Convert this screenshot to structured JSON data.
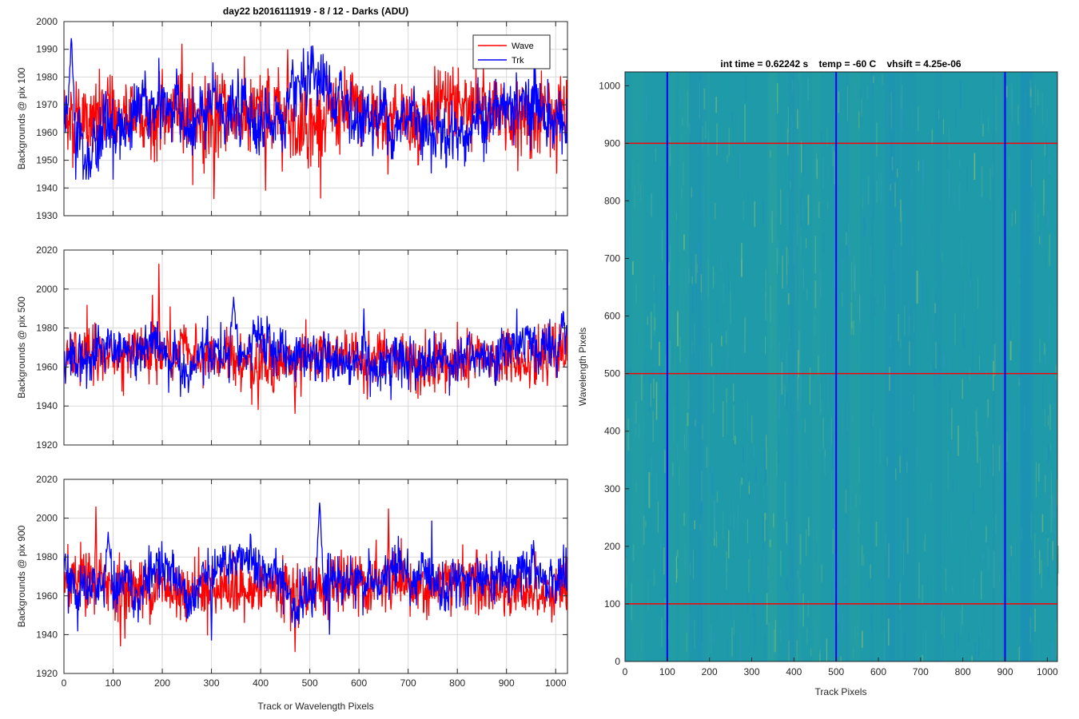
{
  "figure_title": "day22 b2016111919 - 8 / 12 - Darks (ADU)",
  "colors": {
    "wave": "#ff0000",
    "trk": "#0000ff",
    "grid": "#d9d9d9",
    "axis": "#262626",
    "image_base": "#1f9aa8"
  },
  "legend": {
    "entries": [
      "Wave",
      "Trk"
    ],
    "placement": "top-right"
  },
  "chart_data": [
    {
      "type": "line",
      "title": "day22 b2016111919 - 8 / 12 - Darks (ADU)",
      "xlabel": "",
      "ylabel": "Backgrounds @ pix 100",
      "xlim": [
        0,
        1024
      ],
      "ylim": [
        1930,
        2000
      ],
      "xticks": [
        0,
        100,
        200,
        300,
        400,
        500,
        600,
        700,
        800,
        900,
        1000
      ],
      "yticks": [
        1930,
        1940,
        1950,
        1960,
        1970,
        1980,
        1990,
        2000
      ],
      "xtick_labels_visible": false,
      "grid": true,
      "legend": "top-right",
      "series": [
        {
          "name": "Wave",
          "color": "#ff0000",
          "mean": 1966,
          "noise_sd": 7,
          "min_shown": 1936,
          "max_shown": 1992,
          "peaks": [
            [
              240,
              1992
            ],
            [
              305,
              1936
            ],
            [
              410,
              1939
            ],
            [
              455,
              1990
            ]
          ]
        },
        {
          "name": "Trk",
          "color": "#0000ff",
          "mean": 1966,
          "noise_sd": 5.5,
          "min_shown": 1943,
          "max_shown": 1994,
          "peaks": [
            [
              15,
              1994
            ],
            [
              45,
              1943
            ]
          ]
        }
      ]
    },
    {
      "type": "line",
      "xlabel": "",
      "ylabel": "Backgrounds @ pix 500",
      "xlim": [
        0,
        1024
      ],
      "ylim": [
        1920,
        2020
      ],
      "xticks": [
        0,
        100,
        200,
        300,
        400,
        500,
        600,
        700,
        800,
        900,
        1000
      ],
      "yticks": [
        1920,
        1940,
        1960,
        1980,
        2000,
        2020
      ],
      "xtick_labels_visible": false,
      "grid": true,
      "series": [
        {
          "name": "Wave",
          "color": "#ff0000",
          "mean": 1964,
          "noise_sd": 7,
          "min_shown": 1936,
          "max_shown": 2013,
          "peaks": [
            [
              193,
              2013
            ],
            [
              180,
              1997
            ],
            [
              470,
              1936
            ],
            [
              395,
              1938
            ]
          ]
        },
        {
          "name": "Trk",
          "color": "#0000ff",
          "mean": 1966,
          "noise_sd": 6,
          "min_shown": 1942,
          "max_shown": 1996,
          "peaks": [
            [
              345,
              1996
            ],
            [
              610,
              1990
            ]
          ]
        }
      ]
    },
    {
      "type": "line",
      "xlabel": "Track or Wavelength Pixels",
      "ylabel": "Backgrounds @ pix 900",
      "xlim": [
        0,
        1024
      ],
      "ylim": [
        1920,
        2020
      ],
      "xticks": [
        0,
        100,
        200,
        300,
        400,
        500,
        600,
        700,
        800,
        900,
        1000
      ],
      "yticks": [
        1920,
        1940,
        1960,
        1980,
        2000,
        2020
      ],
      "xtick_labels_visible": true,
      "grid": true,
      "series": [
        {
          "name": "Wave",
          "color": "#ff0000",
          "mean": 1965,
          "noise_sd": 7.5,
          "min_shown": 1931,
          "max_shown": 2006,
          "peaks": [
            [
              65,
              2006
            ],
            [
              115,
              1934
            ],
            [
              470,
              1931
            ],
            [
              660,
              2005
            ]
          ]
        },
        {
          "name": "Trk",
          "color": "#0000ff",
          "mean": 1967,
          "noise_sd": 6,
          "min_shown": 1937,
          "max_shown": 2008,
          "peaks": [
            [
              520,
              2008
            ],
            [
              300,
              1937
            ],
            [
              540,
              1940
            ],
            [
              90,
              1993
            ]
          ]
        }
      ]
    },
    {
      "type": "heatmap",
      "title": "int time = 0.62242 s    temp = -60 C    vhsift = 4.25e-06",
      "xlabel": "Track Pixels",
      "ylabel": "Wavelength Pixels",
      "xlim": [
        0,
        1024
      ],
      "ylim": [
        0,
        1024
      ],
      "xticks": [
        0,
        100,
        200,
        300,
        400,
        500,
        600,
        700,
        800,
        900,
        1000
      ],
      "yticks": [
        0,
        100,
        200,
        300,
        400,
        500,
        600,
        700,
        800,
        900,
        1000
      ],
      "colormap": "parula",
      "vertical_markers": [
        100,
        500,
        900
      ],
      "vertical_marker_color": "#0000ff",
      "horizontal_markers": [
        100,
        500,
        900
      ],
      "horizontal_marker_color": "#ff0000"
    }
  ]
}
